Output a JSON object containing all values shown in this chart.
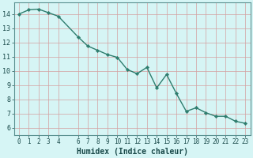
{
  "x": [
    0,
    1,
    2,
    3,
    4,
    6,
    7,
    8,
    9,
    10,
    11,
    12,
    13,
    14,
    15,
    16,
    17,
    18,
    19,
    20,
    21,
    22,
    23
  ],
  "y": [
    14.0,
    14.3,
    14.35,
    14.1,
    13.85,
    12.4,
    11.75,
    11.45,
    11.15,
    10.95,
    10.1,
    9.8,
    10.25,
    8.8,
    9.75,
    8.4,
    7.15,
    7.4,
    7.05,
    6.8,
    6.8,
    6.45,
    6.3
  ],
  "line_color": "#2e7d6e",
  "marker_color": "#2e7d6e",
  "bg_color": "#d6f5f5",
  "grid_color": "#c0d8d8",
  "xlabel": "Humidex (Indice chaleur)",
  "xlim": [
    -0.5,
    23.5
  ],
  "ylim": [
    5.5,
    14.8
  ],
  "yticks": [
    6,
    7,
    8,
    9,
    10,
    11,
    12,
    13,
    14
  ],
  "xticks": [
    0,
    1,
    2,
    3,
    4,
    6,
    7,
    8,
    9,
    10,
    11,
    12,
    13,
    14,
    15,
    16,
    17,
    18,
    19,
    20,
    21,
    22,
    23
  ],
  "xtick_labels": [
    "0",
    "1",
    "2",
    "3",
    "4",
    "6",
    "7",
    "8",
    "9",
    "10",
    "11",
    "12",
    "13",
    "14",
    "15",
    "16",
    "17",
    "18",
    "19",
    "20",
    "21",
    "22",
    "23"
  ],
  "xlabel_fontsize": 7,
  "tick_fontsize": 5.5,
  "ytick_fontsize": 6
}
